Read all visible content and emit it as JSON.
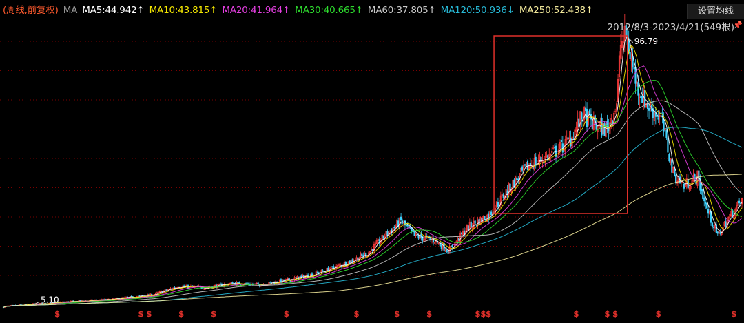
{
  "legend": {
    "mode": "(周线,前复权)",
    "ma_label": "MA",
    "items": [
      {
        "text": "MA5:44.942↑",
        "color": "#ffffff"
      },
      {
        "text": "MA10:43.815↑",
        "color": "#f3e600"
      },
      {
        "text": "MA20:41.964↑",
        "color": "#e43fe0"
      },
      {
        "text": "MA30:40.665↑",
        "color": "#2edc2e"
      },
      {
        "text": "MA60:37.805↑",
        "color": "#c8c8c8"
      },
      {
        "text": "MA120:50.936↓",
        "color": "#27b9d6"
      },
      {
        "text": "MA250:52.438↑",
        "color": "#f1e79a"
      }
    ]
  },
  "settings_label": "设置均线",
  "range_label": "2012/8/3-2023/4/21(549根)",
  "chart_data": {
    "type": "candlestick",
    "period": "weekly",
    "adjustment": "forward-adjusted",
    "bar_count": 549,
    "x_range": [
      "2012/8/3",
      "2023/4/21"
    ],
    "low_label": "5.10",
    "high_label": "96.79",
    "ylim": [
      4,
      100
    ],
    "price_path": [
      [
        0,
        5.1
      ],
      [
        40,
        6.5
      ],
      [
        80,
        7.5
      ],
      [
        110,
        9
      ],
      [
        130,
        12
      ],
      [
        150,
        11.5
      ],
      [
        170,
        13
      ],
      [
        190,
        12.5
      ],
      [
        210,
        14
      ],
      [
        230,
        16
      ],
      [
        250,
        19
      ],
      [
        270,
        23
      ],
      [
        285,
        30
      ],
      [
        295,
        34
      ],
      [
        305,
        29
      ],
      [
        320,
        27.5
      ],
      [
        330,
        24
      ],
      [
        345,
        32
      ],
      [
        360,
        36
      ],
      [
        375,
        45
      ],
      [
        390,
        53
      ],
      [
        405,
        56
      ],
      [
        420,
        61
      ],
      [
        430,
        70
      ],
      [
        440,
        66
      ],
      [
        448,
        65
      ],
      [
        455,
        74
      ],
      [
        458,
        94
      ],
      [
        462,
        96.79
      ],
      [
        470,
        80
      ],
      [
        478,
        73
      ],
      [
        488,
        69
      ],
      [
        497,
        50
      ],
      [
        505,
        46
      ],
      [
        515,
        49
      ],
      [
        522,
        38
      ],
      [
        530,
        29
      ],
      [
        538,
        35
      ],
      [
        548,
        41
      ]
    ],
    "ma_lines": [
      {
        "name": "MA5",
        "last": 44.942,
        "color": "#ffffff"
      },
      {
        "name": "MA10",
        "last": 43.815,
        "color": "#f3e600"
      },
      {
        "name": "MA20",
        "last": 41.964,
        "color": "#e43fe0"
      },
      {
        "name": "MA30",
        "last": 40.665,
        "color": "#2edc2e"
      },
      {
        "name": "MA60",
        "last": 37.805,
        "color": "#c8c8c8"
      },
      {
        "name": "MA120",
        "last": 50.936,
        "color": "#27b9d6"
      },
      {
        "name": "MA250",
        "last": 52.438,
        "color": "#f1e79a"
      }
    ],
    "highlight_box_bars": [
      365,
      462
    ],
    "dividend_marker_bars": [
      40,
      102,
      108,
      132,
      156,
      210,
      262,
      292,
      316,
      352,
      356,
      360,
      425,
      448,
      454,
      486,
      542
    ]
  },
  "colors": {
    "up": "#ff3b3b",
    "down": "#3fd3ff",
    "box": "#e0302a",
    "marker": "#e0302a",
    "grid": "#7a0000"
  },
  "marker_glyph": "$"
}
